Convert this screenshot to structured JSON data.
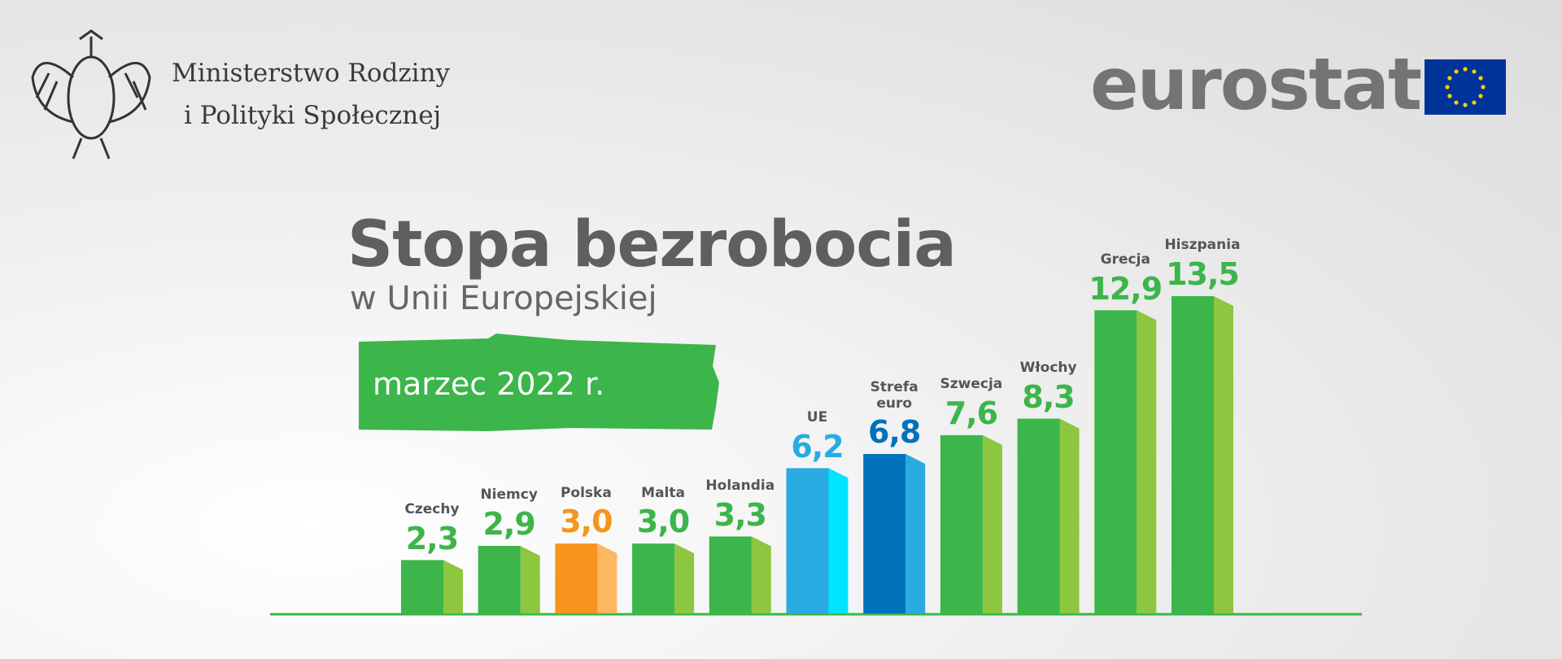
{
  "header": {
    "ministry": [
      "Ministerstwo Rodziny",
      "i Polityki Społecznej"
    ],
    "brand": "eurostat"
  },
  "chart_data": {
    "type": "bar",
    "title": "Stopa bezrobocia",
    "subtitle": "w Unii Europejskiej",
    "period": "marzec 2022 r.",
    "categories": [
      "Czechy",
      "Niemcy",
      "Polska",
      "Malta",
      "Holandia",
      "UE",
      "Strefa euro",
      "Szwecja",
      "Włochy",
      "Grecja",
      "Hiszpania"
    ],
    "values": [
      2.3,
      2.9,
      3.0,
      3.0,
      3.3,
      6.2,
      6.8,
      7.6,
      8.3,
      12.9,
      13.5
    ],
    "value_labels": [
      "2,3",
      "2,9",
      "3,0",
      "3,0",
      "3,3",
      "6,2",
      "6,8",
      "7,6",
      "8,3",
      "12,9",
      "13,5"
    ],
    "colors": [
      "#3cb54a",
      "#3cb54a",
      "#f7941d",
      "#3cb54a",
      "#3cb54a",
      "#29abe2",
      "#0072bc",
      "#3cb54a",
      "#3cb54a",
      "#3cb54a",
      "#3cb54a"
    ],
    "side_colors": [
      "#8dc63f",
      "#8dc63f",
      "#fbb860",
      "#8dc63f",
      "#8dc63f",
      "#00e5ff",
      "#29abe2",
      "#8dc63f",
      "#8dc63f",
      "#8dc63f",
      "#8dc63f"
    ]
  }
}
